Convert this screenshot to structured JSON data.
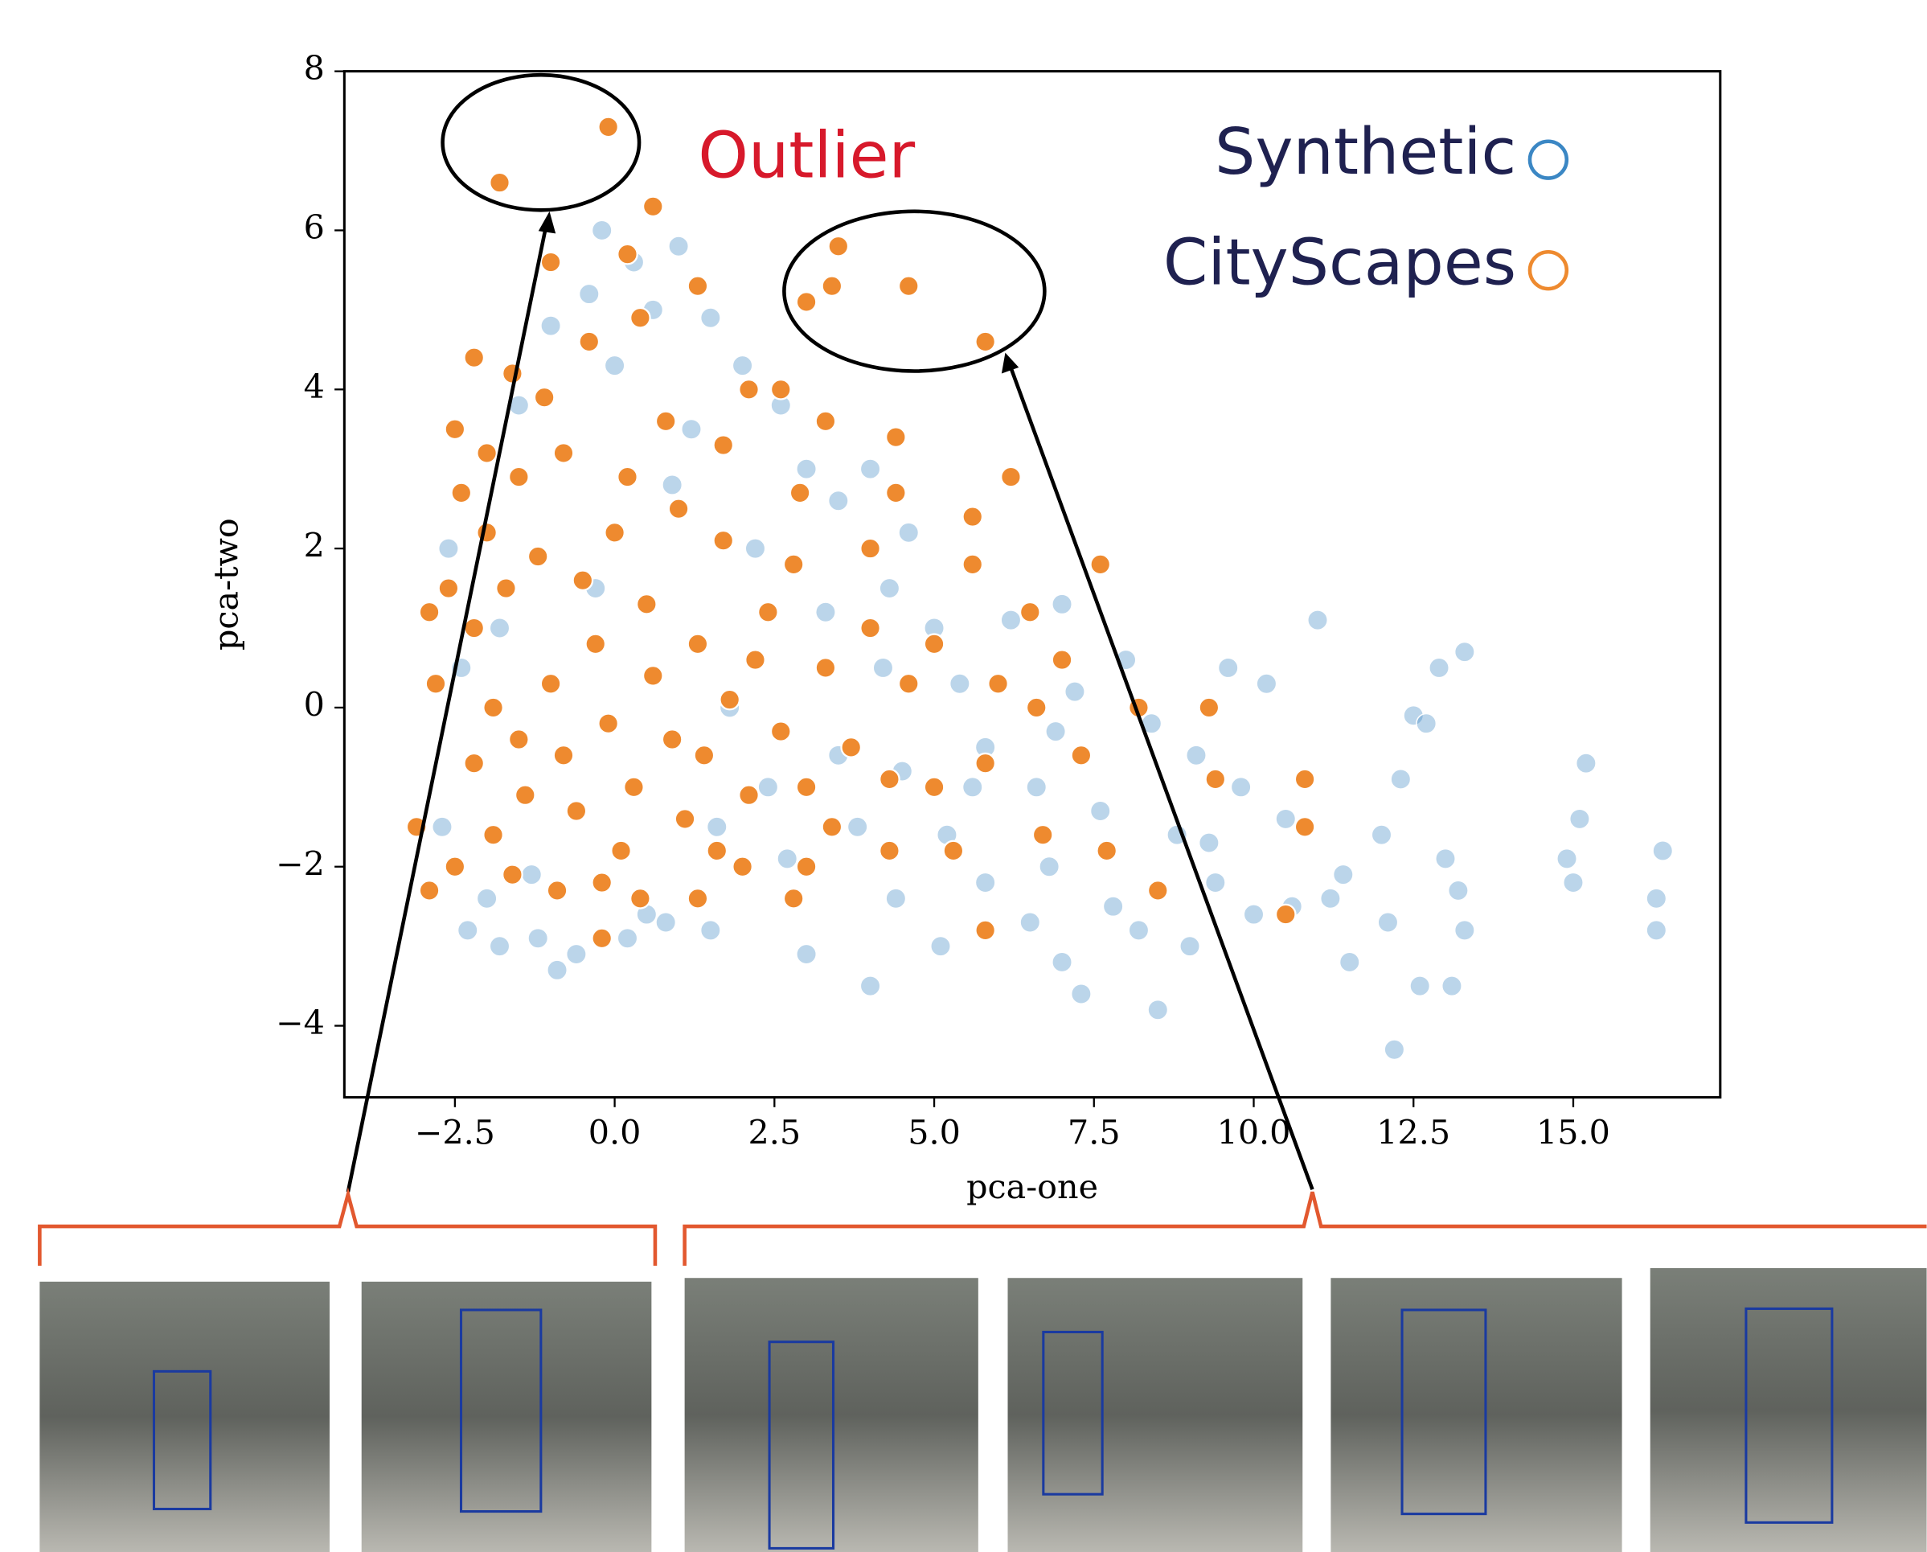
{
  "chart_data": {
    "type": "scatter",
    "xlabel": "pca-one",
    "ylabel": "pca-two",
    "annotation": "Outlier",
    "xlim": [
      -4.23,
      17.3
    ],
    "ylim": [
      -4.9,
      8
    ],
    "xticks": [
      {
        "value": -2.5,
        "label": "−2.5"
      },
      {
        "value": 0,
        "label": "0.0"
      },
      2.5,
      {
        "value": 5,
        "label": "5.0"
      },
      7.5,
      {
        "value": 10,
        "label": "10.0"
      },
      12.5,
      {
        "value": 15,
        "label": "15.0"
      }
    ],
    "yticks": [
      {
        "value": -4,
        "label": "−4"
      },
      {
        "value": -2,
        "label": "−2"
      },
      0,
      2,
      4,
      6,
      8
    ],
    "legend": "upper right",
    "series": [
      {
        "name": "Synthetic",
        "color": "#3b87c4",
        "x": [
          -2.3,
          -1.8,
          -1.2,
          -0.6,
          0.2,
          0.8,
          1.5,
          -2.0,
          -0.9,
          -1.5,
          -1.0,
          -0.4,
          -0.2,
          0.3,
          0.6,
          1.0,
          1.5,
          2.0,
          2.6,
          3.0,
          3.5,
          4.0,
          4.3,
          4.6,
          5.0,
          5.4,
          5.8,
          6.2,
          6.6,
          7.0,
          7.2,
          7.6,
          8.0,
          8.4,
          8.8,
          9.1,
          9.4,
          9.0,
          8.5,
          7.8,
          7.0,
          6.5,
          5.8,
          5.2,
          4.4,
          4.0,
          3.0,
          2.7,
          3.5,
          4.2,
          9.6,
          9.8,
          10.2,
          10.5,
          10.6,
          11.0,
          11.2,
          11.5,
          11.4,
          12.0,
          12.1,
          12.3,
          12.2,
          12.5,
          12.6,
          12.9,
          13.1,
          13.3,
          13.2,
          13.3,
          15.0,
          15.1,
          15.2,
          16.4,
          16.3,
          16.3,
          -2.6,
          -2.4,
          -2.7,
          0.0,
          1.2,
          2.2,
          1.8,
          2.4,
          3.3,
          3.8,
          5.6,
          6.9,
          8.2,
          13.0,
          14.9,
          12.7,
          10.0,
          9.3,
          7.3,
          6.8,
          5.1,
          4.5,
          0.5,
          -1.3,
          -0.3,
          0.9,
          1.6,
          -1.8
        ],
        "values": [
          -2.8,
          -3.0,
          -2.9,
          -3.1,
          -2.9,
          -2.7,
          -2.8,
          -2.4,
          -3.3,
          3.8,
          4.8,
          5.2,
          6.0,
          5.6,
          5.0,
          5.8,
          4.9,
          4.3,
          3.8,
          3.0,
          2.6,
          3.0,
          1.5,
          2.2,
          1.0,
          0.3,
          -0.5,
          1.1,
          -1.0,
          1.3,
          0.2,
          -1.3,
          0.6,
          -0.2,
          -1.6,
          -0.6,
          -2.2,
          -3.0,
          -3.8,
          -2.5,
          -3.2,
          -2.7,
          -2.2,
          -1.6,
          -2.4,
          -3.5,
          -3.1,
          -1.9,
          -0.6,
          0.5,
          0.5,
          -1.0,
          0.3,
          -1.4,
          -2.5,
          1.1,
          -2.4,
          -3.2,
          -2.1,
          -1.6,
          -2.7,
          -0.9,
          -4.3,
          -0.1,
          -3.5,
          0.5,
          -3.5,
          0.7,
          -2.3,
          -2.8,
          -2.2,
          -1.4,
          -0.7,
          -1.8,
          -2.4,
          -2.8,
          2.0,
          0.5,
          -1.5,
          4.3,
          3.5,
          2.0,
          0.0,
          -1.0,
          1.2,
          -1.5,
          -1.0,
          -0.3,
          -2.8,
          -1.9,
          -1.9,
          -0.2,
          -2.6,
          -1.7,
          -3.6,
          -2.0,
          -3.0,
          -0.8,
          -2.6,
          -2.1,
          1.5,
          2.8,
          -1.5,
          1.0
        ]
      },
      {
        "name": "CityScapes",
        "color": "#ee8a2f",
        "x": [
          -0.1,
          -1.8,
          0.6,
          0.2,
          -1.0,
          3.5,
          3.4,
          4.6,
          3.0,
          5.8,
          -2.2,
          -2.5,
          -1.6,
          -0.4,
          0.4,
          1.3,
          2.1,
          2.6,
          3.3,
          4.4,
          6.2,
          4.4,
          5.6,
          7.6,
          5.6,
          6.5,
          -2.4,
          -2.0,
          -2.6,
          -2.9,
          -2.8,
          -3.1,
          -2.9,
          -2.5,
          -1.6,
          -0.9,
          -0.2,
          0.4,
          1.3,
          -0.2,
          2.0,
          3.0,
          2.8,
          4.3,
          5.3,
          5.8,
          6.7,
          7.0,
          6.6,
          7.3,
          8.2,
          9.3,
          9.4,
          10.8,
          10.8,
          10.5,
          7.7,
          8.5,
          5.8,
          5.0,
          4.3,
          3.7,
          3.3,
          4.0,
          2.4,
          2.8,
          1.7,
          1.0,
          0.2,
          -0.8,
          -1.5,
          -1.2,
          -0.5,
          0.5,
          1.3,
          1.8,
          0.9,
          -0.1,
          -1.0,
          -1.9,
          -2.2,
          -1.4,
          -0.6,
          0.3,
          1.1,
          2.1,
          2.6,
          3.0,
          1.6,
          -1.9,
          -2.2,
          -0.3,
          0.6,
          -1.5,
          0.1,
          2.2,
          3.4,
          4.6,
          6.0,
          5.0,
          -1.1,
          0.8,
          1.7,
          -2.0,
          0.0,
          -1.7,
          1.4,
          -0.8,
          2.9,
          4.0
        ],
        "values": [
          7.3,
          6.6,
          6.3,
          5.7,
          5.6,
          5.8,
          5.3,
          5.3,
          5.1,
          4.6,
          4.4,
          3.5,
          4.2,
          4.6,
          4.9,
          5.3,
          4.0,
          4.0,
          3.6,
          3.4,
          2.9,
          2.7,
          2.4,
          1.8,
          1.8,
          1.2,
          2.7,
          2.2,
          1.5,
          1.2,
          0.3,
          -1.5,
          -2.3,
          -2.0,
          -2.1,
          -2.3,
          -2.2,
          -2.4,
          -2.4,
          -2.9,
          -2.0,
          -2.0,
          -2.4,
          -1.8,
          -1.8,
          -2.8,
          -1.6,
          0.6,
          0.0,
          -0.6,
          0.0,
          0.0,
          -0.9,
          -0.9,
          -1.5,
          -2.6,
          -1.8,
          -2.3,
          -0.7,
          -1.0,
          -0.9,
          -0.5,
          0.5,
          1.0,
          1.2,
          1.8,
          2.1,
          2.5,
          2.9,
          3.2,
          2.9,
          1.9,
          1.6,
          1.3,
          0.8,
          0.1,
          -0.4,
          -0.2,
          0.3,
          0.0,
          -0.7,
          -1.1,
          -1.3,
          -1.0,
          -1.4,
          -1.1,
          -0.3,
          -1.0,
          -1.8,
          -1.6,
          1.0,
          0.8,
          0.4,
          -0.4,
          -1.8,
          0.6,
          -1.5,
          0.3,
          0.3,
          0.8,
          3.9,
          3.6,
          3.3,
          3.2,
          2.2,
          1.5,
          -0.6,
          -0.6,
          2.7,
          2.0
        ]
      }
    ]
  }
}
